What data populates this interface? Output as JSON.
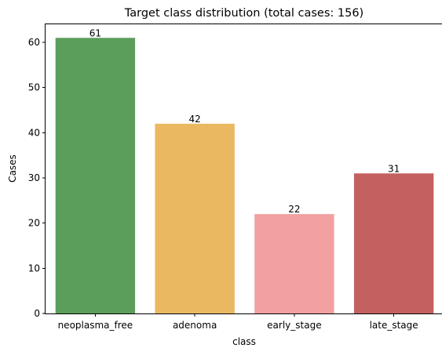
{
  "chart_data": {
    "type": "bar",
    "title": "Target class distribution (total cases: 156)",
    "xlabel": "class",
    "ylabel": "Cases",
    "categories": [
      "neoplasma_free",
      "adenoma",
      "early_stage",
      "late_stage"
    ],
    "values": [
      61,
      42,
      22,
      31
    ],
    "data_labels": [
      "61",
      "42",
      "22",
      "31"
    ],
    "colors": [
      "#5a9e5a",
      "#ebb862",
      "#f2a0a0",
      "#c46060"
    ],
    "ylim": [
      0,
      64
    ],
    "yticks": [
      0,
      10,
      20,
      30,
      40,
      50,
      60
    ],
    "ytick_labels": [
      "0",
      "10",
      "20",
      "30",
      "40",
      "50",
      "60"
    ],
    "grid": false,
    "legend": "none"
  }
}
